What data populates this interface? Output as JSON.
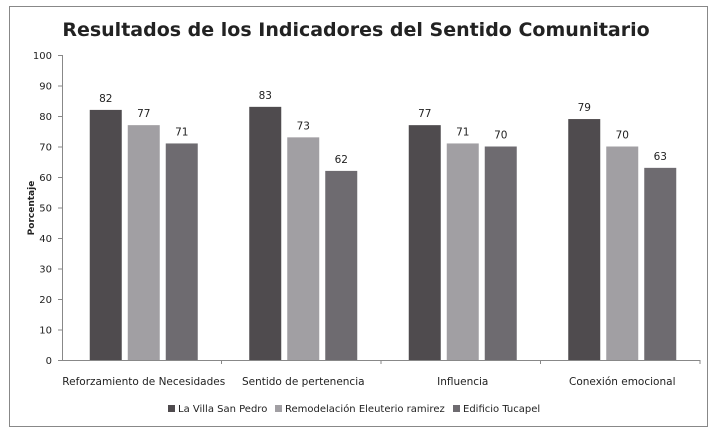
{
  "chart_data": {
    "type": "bar",
    "title": "Resultados de los Indicadores del  Sentido Comunitario",
    "xlabel": "",
    "ylabel": "Porcentaje",
    "ylim": [
      0,
      100
    ],
    "yticks": [
      0,
      10,
      20,
      30,
      40,
      50,
      60,
      70,
      80,
      90,
      100
    ],
    "grid": false,
    "legend_position": "bottom",
    "categories": [
      "Reforzamiento de Necesidades",
      "Sentido de pertenencia",
      "Influencia",
      "Conexión emocional"
    ],
    "series": [
      {
        "name": "La Villa San  Pedro",
        "values": [
          82,
          83,
          77,
          79
        ],
        "color": "#4f4b4e"
      },
      {
        "name": "Remodelación Eleuterio ramirez",
        "values": [
          77,
          73,
          71,
          70
        ],
        "color": "#a19fa3"
      },
      {
        "name": "Edificio Tucapel",
        "values": [
          71,
          62,
          70,
          63
        ],
        "color": "#6e6b70"
      }
    ]
  }
}
